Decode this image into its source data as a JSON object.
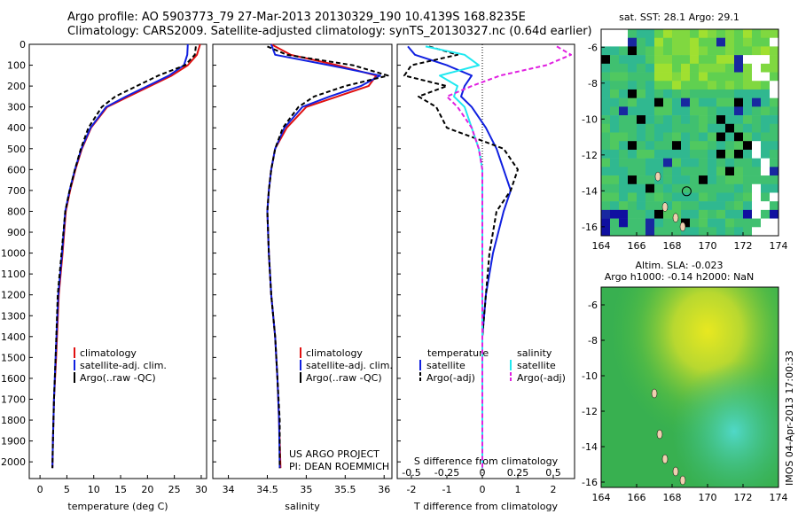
{
  "header": {
    "line1": "Argo profile: AO 5903773_79 27-Mar-2013 20130329_190 10.4139S 168.8235E",
    "line2": "Climatology: CARS2009. Satellite-adjusted climatology: synTS_20130327.nc (0.64d earlier)"
  },
  "colors": {
    "climatology": "#e01010",
    "satellite": "#1020e0",
    "argo": "#000000",
    "sal_satellite": "#20e8f0",
    "sal_argo": "#e020e0"
  },
  "depth_ticks": [
    "0",
    "100",
    "200",
    "300",
    "400",
    "500",
    "600",
    "700",
    "800",
    "900",
    "1000",
    "1100",
    "1200",
    "1300",
    "1400",
    "1500",
    "1600",
    "1700",
    "1800",
    "1900",
    "2000"
  ],
  "temp_panel": {
    "xlabel": "temperature (deg C)",
    "xticks": [
      "0",
      "5",
      "10",
      "15",
      "20",
      "25",
      "30"
    ],
    "legend": [
      "climatology",
      "satellite-adj. clim.",
      "Argo(..raw -QC)"
    ]
  },
  "sal_panel": {
    "xlabel": "salinity",
    "xticks": [
      "34",
      "34.5",
      "35",
      "35.5",
      "36"
    ],
    "legend": [
      "climatology",
      "satellite-adj. clim.",
      "Argo(..raw -QC)"
    ],
    "project": "US ARGO PROJECT",
    "pi": "PI: DEAN ROEMMICH"
  },
  "diff_panel": {
    "xlabel": "T difference from climatology",
    "s_label": "S difference from climatology",
    "top_ticks": [
      "-0.5",
      "-0.25",
      "0",
      "0.25",
      "0.5"
    ],
    "bottom_ticks": [
      "-2",
      "-1",
      "0",
      "1",
      "2"
    ],
    "legend_t_title": "temperature",
    "legend_s_title": "salinity",
    "legend_t": [
      "satellite",
      "Argo(-adj)"
    ],
    "legend_s": [
      "satellite",
      "Argo(-adj)"
    ]
  },
  "sst_map": {
    "title": "sat. SST: 28.1  Argo: 29.1",
    "lat_ticks": [
      "-6",
      "-8",
      "-10",
      "-12",
      "-14",
      "-16"
    ],
    "lon_ticks": [
      "164",
      "166",
      "168",
      "170",
      "172",
      "174"
    ]
  },
  "sla_map": {
    "title1": "Altim. SLA: -0.023",
    "title2": "Argo h1000: -0.14 h2000: NaN",
    "lat_ticks": [
      "-6",
      "-8",
      "-10",
      "-12",
      "-14",
      "-16"
    ],
    "lon_ticks": [
      "164",
      "166",
      "168",
      "170",
      "172",
      "174"
    ]
  },
  "stamp": "IMOS 04-Apr-2013 17:00:33",
  "chart_data": [
    {
      "type": "line",
      "title": "temperature profile",
      "xlabel": "temperature (deg C)",
      "ylabel": "depth",
      "xlim": [
        -2,
        31
      ],
      "ylim": [
        2080,
        0
      ],
      "series": [
        {
          "name": "climatology",
          "x": [
            29.8,
            29.2,
            27.5,
            24.5,
            20.5,
            16.5,
            12.5,
            9.5,
            7.8,
            6.6,
            5.6,
            4.8,
            4.2,
            3.5,
            3.0,
            2.6,
            2.4,
            2.3
          ],
          "y": [
            0,
            50,
            100,
            150,
            200,
            250,
            300,
            400,
            500,
            600,
            700,
            800,
            1000,
            1200,
            1500,
            1700,
            1900,
            2030
          ]
        },
        {
          "name": "satellite-adj. clim.",
          "x": [
            27.5,
            27.4,
            26.8,
            24.0,
            20.0,
            16.0,
            12.3,
            9.4,
            7.7,
            6.5,
            5.5,
            4.7,
            4.1,
            3.4,
            2.9,
            2.6,
            2.4,
            2.3
          ],
          "y": [
            0,
            50,
            100,
            150,
            200,
            250,
            300,
            400,
            500,
            600,
            700,
            800,
            1000,
            1200,
            1500,
            1700,
            1900,
            2030
          ]
        },
        {
          "name": "Argo(..raw -QC)",
          "x": [
            29.0,
            28.8,
            27.0,
            22.0,
            18.0,
            14.0,
            11.5,
            9.0,
            7.6,
            6.5,
            5.5,
            4.7,
            4.0,
            3.3,
            2.9,
            2.6,
            2.4,
            2.3
          ],
          "y": [
            10,
            50,
            100,
            150,
            200,
            250,
            300,
            400,
            500,
            600,
            700,
            800,
            1000,
            1200,
            1500,
            1700,
            1900,
            2030
          ]
        }
      ]
    },
    {
      "type": "line",
      "title": "salinity profile",
      "xlabel": "salinity",
      "ylabel": "depth",
      "xlim": [
        33.8,
        36.1
      ],
      "ylim": [
        2080,
        0
      ],
      "series": [
        {
          "name": "climatology",
          "x": [
            34.55,
            34.8,
            35.4,
            35.9,
            35.8,
            35.4,
            35.0,
            34.75,
            34.6,
            34.55,
            34.52,
            34.5,
            34.52,
            34.55,
            34.6,
            34.63,
            34.65,
            34.67
          ],
          "y": [
            0,
            50,
            100,
            150,
            200,
            250,
            300,
            400,
            500,
            600,
            700,
            800,
            1000,
            1200,
            1400,
            1600,
            1800,
            2030
          ]
        },
        {
          "name": "satellite-adj. clim.",
          "x": [
            34.55,
            34.6,
            35.3,
            35.95,
            35.7,
            35.3,
            34.95,
            34.72,
            34.6,
            34.55,
            34.52,
            34.5,
            34.52,
            34.55,
            34.6,
            34.63,
            34.65,
            34.66
          ],
          "y": [
            0,
            50,
            100,
            150,
            200,
            250,
            300,
            400,
            500,
            600,
            700,
            800,
            1000,
            1200,
            1400,
            1600,
            1800,
            2030
          ]
        },
        {
          "name": "Argo(..raw -QC)",
          "x": [
            34.5,
            34.75,
            35.6,
            36.05,
            35.5,
            35.1,
            34.9,
            34.7,
            34.6,
            34.55,
            34.52,
            34.5,
            34.52,
            34.55,
            34.6,
            34.63,
            34.66,
            34.66
          ],
          "y": [
            10,
            50,
            100,
            150,
            200,
            250,
            300,
            400,
            500,
            600,
            700,
            800,
            1000,
            1200,
            1400,
            1600,
            1800,
            2030
          ]
        }
      ]
    },
    {
      "type": "line",
      "title": "difference from climatology",
      "xlabel": "T difference from climatology",
      "ylabel": "depth",
      "xlim": [
        -2.4,
        2.6
      ],
      "ylim": [
        2080,
        0
      ],
      "series": [
        {
          "name": "temperature satellite",
          "x": [
            -2.1,
            -1.9,
            -1.0,
            -0.3,
            -0.5,
            -0.6,
            -0.3,
            0.1,
            0.4,
            0.6,
            0.8,
            0.6,
            0.3,
            0.1,
            0.0,
            0.0,
            0.0,
            0.0
          ],
          "y": [
            10,
            50,
            100,
            150,
            200,
            250,
            300,
            400,
            500,
            600,
            700,
            800,
            1000,
            1200,
            1400,
            1600,
            1800,
            2030
          ]
        },
        {
          "name": "temperature Argo(-adj)",
          "x": [
            -1.5,
            -0.7,
            -2.0,
            -2.2,
            -1.0,
            -1.8,
            -1.3,
            -1.0,
            0.6,
            1.0,
            0.8,
            0.4,
            0.2,
            0.1,
            0.0,
            0.0,
            0.0,
            0.0
          ],
          "y": [
            10,
            50,
            100,
            150,
            200,
            250,
            300,
            400,
            500,
            600,
            700,
            800,
            1000,
            1200,
            1400,
            1600,
            1800,
            2030
          ]
        },
        {
          "name": "salinity satellite",
          "x": [
            -1.6,
            -0.5,
            -0.1,
            -1.2,
            -0.7,
            -0.8,
            -0.5,
            -0.3,
            -0.1,
            0.0,
            0.0,
            0.0,
            0.0,
            0.0,
            0.0,
            0.0,
            0.0,
            0.0
          ],
          "y": [
            10,
            50,
            100,
            150,
            200,
            250,
            300,
            400,
            500,
            600,
            700,
            800,
            1000,
            1200,
            1400,
            1600,
            1800,
            2030
          ]
        },
        {
          "name": "salinity Argo(-adj)",
          "x": [
            2.1,
            2.5,
            1.8,
            0.5,
            -0.3,
            -1.0,
            -0.7,
            -0.3,
            -0.1,
            0.0,
            0.0,
            0.0,
            0.0,
            0.0,
            0.0,
            0.0,
            0.0,
            0.0
          ],
          "y": [
            10,
            50,
            100,
            150,
            200,
            250,
            300,
            400,
            500,
            600,
            700,
            800,
            1000,
            1200,
            1400,
            1600,
            1800,
            2030
          ]
        }
      ]
    }
  ]
}
